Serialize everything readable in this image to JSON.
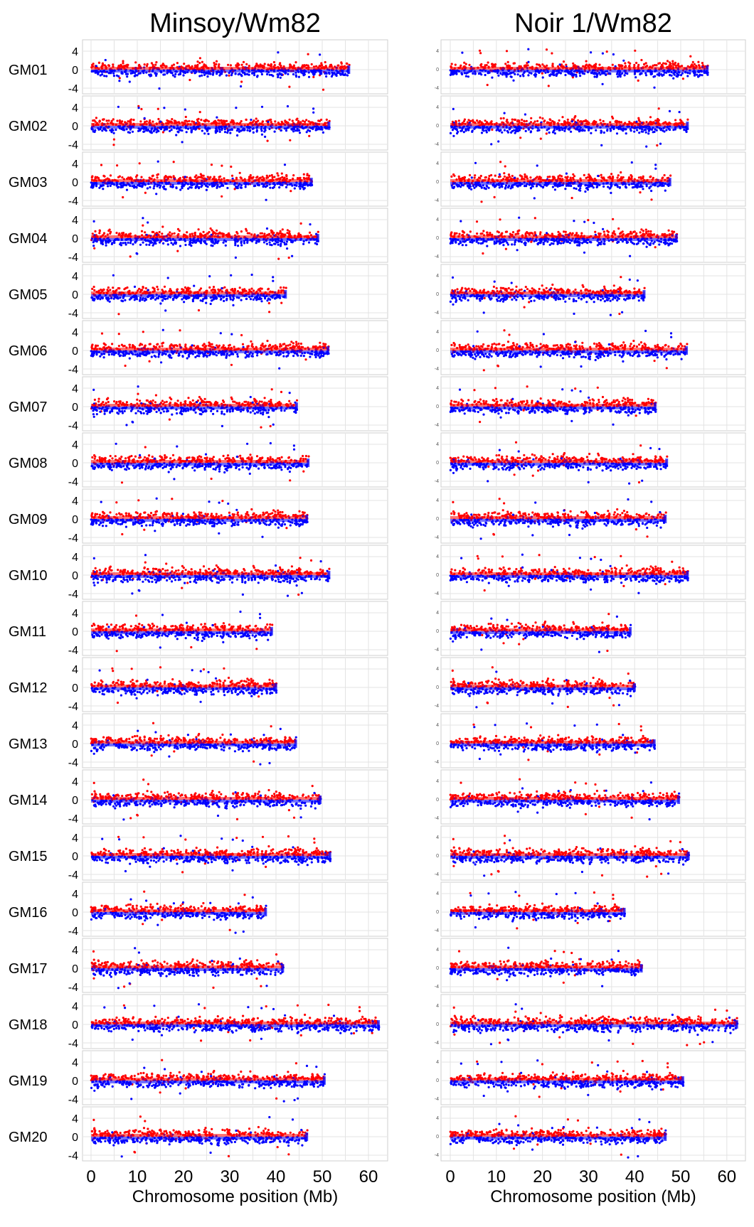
{
  "chart_data": [
    {
      "type": "scatter",
      "title": "Minsoy/Wm82",
      "xlabel": "Chromosome position (Mb)",
      "ylabel": "",
      "xlim": [
        0,
        63
      ],
      "ylim": [
        -5,
        5
      ],
      "x_ticks": [
        "0",
        "10",
        "20",
        "30",
        "40",
        "50",
        "60"
      ],
      "y_ticks": [
        "4",
        "0",
        "-4"
      ],
      "series_colors": {
        "series_1": "#ff0000",
        "series_2": "#0000ff"
      },
      "chromosomes": [
        {
          "label": "GM01",
          "length_mb": 55.9
        },
        {
          "label": "GM02",
          "length_mb": 51.6
        },
        {
          "label": "GM03",
          "length_mb": 47.8
        },
        {
          "label": "GM04",
          "length_mb": 49.2
        },
        {
          "label": "GM05",
          "length_mb": 42.2
        },
        {
          "label": "GM06",
          "length_mb": 51.4
        },
        {
          "label": "GM07",
          "length_mb": 44.6
        },
        {
          "label": "GM08",
          "length_mb": 47.1
        },
        {
          "label": "GM09",
          "length_mb": 46.8
        },
        {
          "label": "GM10",
          "length_mb": 51.6
        },
        {
          "label": "GM11",
          "length_mb": 39.2
        },
        {
          "label": "GM12",
          "length_mb": 40.1
        },
        {
          "label": "GM13",
          "length_mb": 44.4
        },
        {
          "label": "GM14",
          "length_mb": 49.7
        },
        {
          "label": "GM15",
          "length_mb": 51.8
        },
        {
          "label": "GM16",
          "length_mb": 37.9
        },
        {
          "label": "GM17",
          "length_mb": 41.6
        },
        {
          "label": "GM18",
          "length_mb": 62.3
        },
        {
          "label": "GM19",
          "length_mb": 50.6
        },
        {
          "label": "GM20",
          "length_mb": 46.8
        }
      ]
    },
    {
      "type": "scatter",
      "title": "Noir 1/Wm82",
      "xlabel": "Chromosome position (Mb)",
      "ylabel": "",
      "xlim": [
        0,
        63
      ],
      "ylim": [
        -5,
        5
      ],
      "x_ticks": [
        "0",
        "10",
        "20",
        "30",
        "40",
        "50",
        "60"
      ],
      "y_ticks": [
        "4",
        "0",
        "-4"
      ],
      "series_colors": {
        "series_1": "#ff0000",
        "series_2": "#0000ff"
      },
      "chromosomes": [
        {
          "label": "GM01",
          "length_mb": 55.9
        },
        {
          "label": "GM02",
          "length_mb": 51.6
        },
        {
          "label": "GM03",
          "length_mb": 47.8
        },
        {
          "label": "GM04",
          "length_mb": 49.2
        },
        {
          "label": "GM05",
          "length_mb": 42.2
        },
        {
          "label": "GM06",
          "length_mb": 51.4
        },
        {
          "label": "GM07",
          "length_mb": 44.6
        },
        {
          "label": "GM08",
          "length_mb": 47.1
        },
        {
          "label": "GM09",
          "length_mb": 46.8
        },
        {
          "label": "GM10",
          "length_mb": 51.6
        },
        {
          "label": "GM11",
          "length_mb": 39.2
        },
        {
          "label": "GM12",
          "length_mb": 40.1
        },
        {
          "label": "GM13",
          "length_mb": 44.4
        },
        {
          "label": "GM14",
          "length_mb": 49.7
        },
        {
          "label": "GM15",
          "length_mb": 51.8
        },
        {
          "label": "GM16",
          "length_mb": 37.9
        },
        {
          "label": "GM17",
          "length_mb": 41.6
        },
        {
          "label": "GM18",
          "length_mb": 62.3
        },
        {
          "label": "GM19",
          "length_mb": 50.6
        },
        {
          "label": "GM20",
          "length_mb": 46.8
        }
      ]
    }
  ]
}
